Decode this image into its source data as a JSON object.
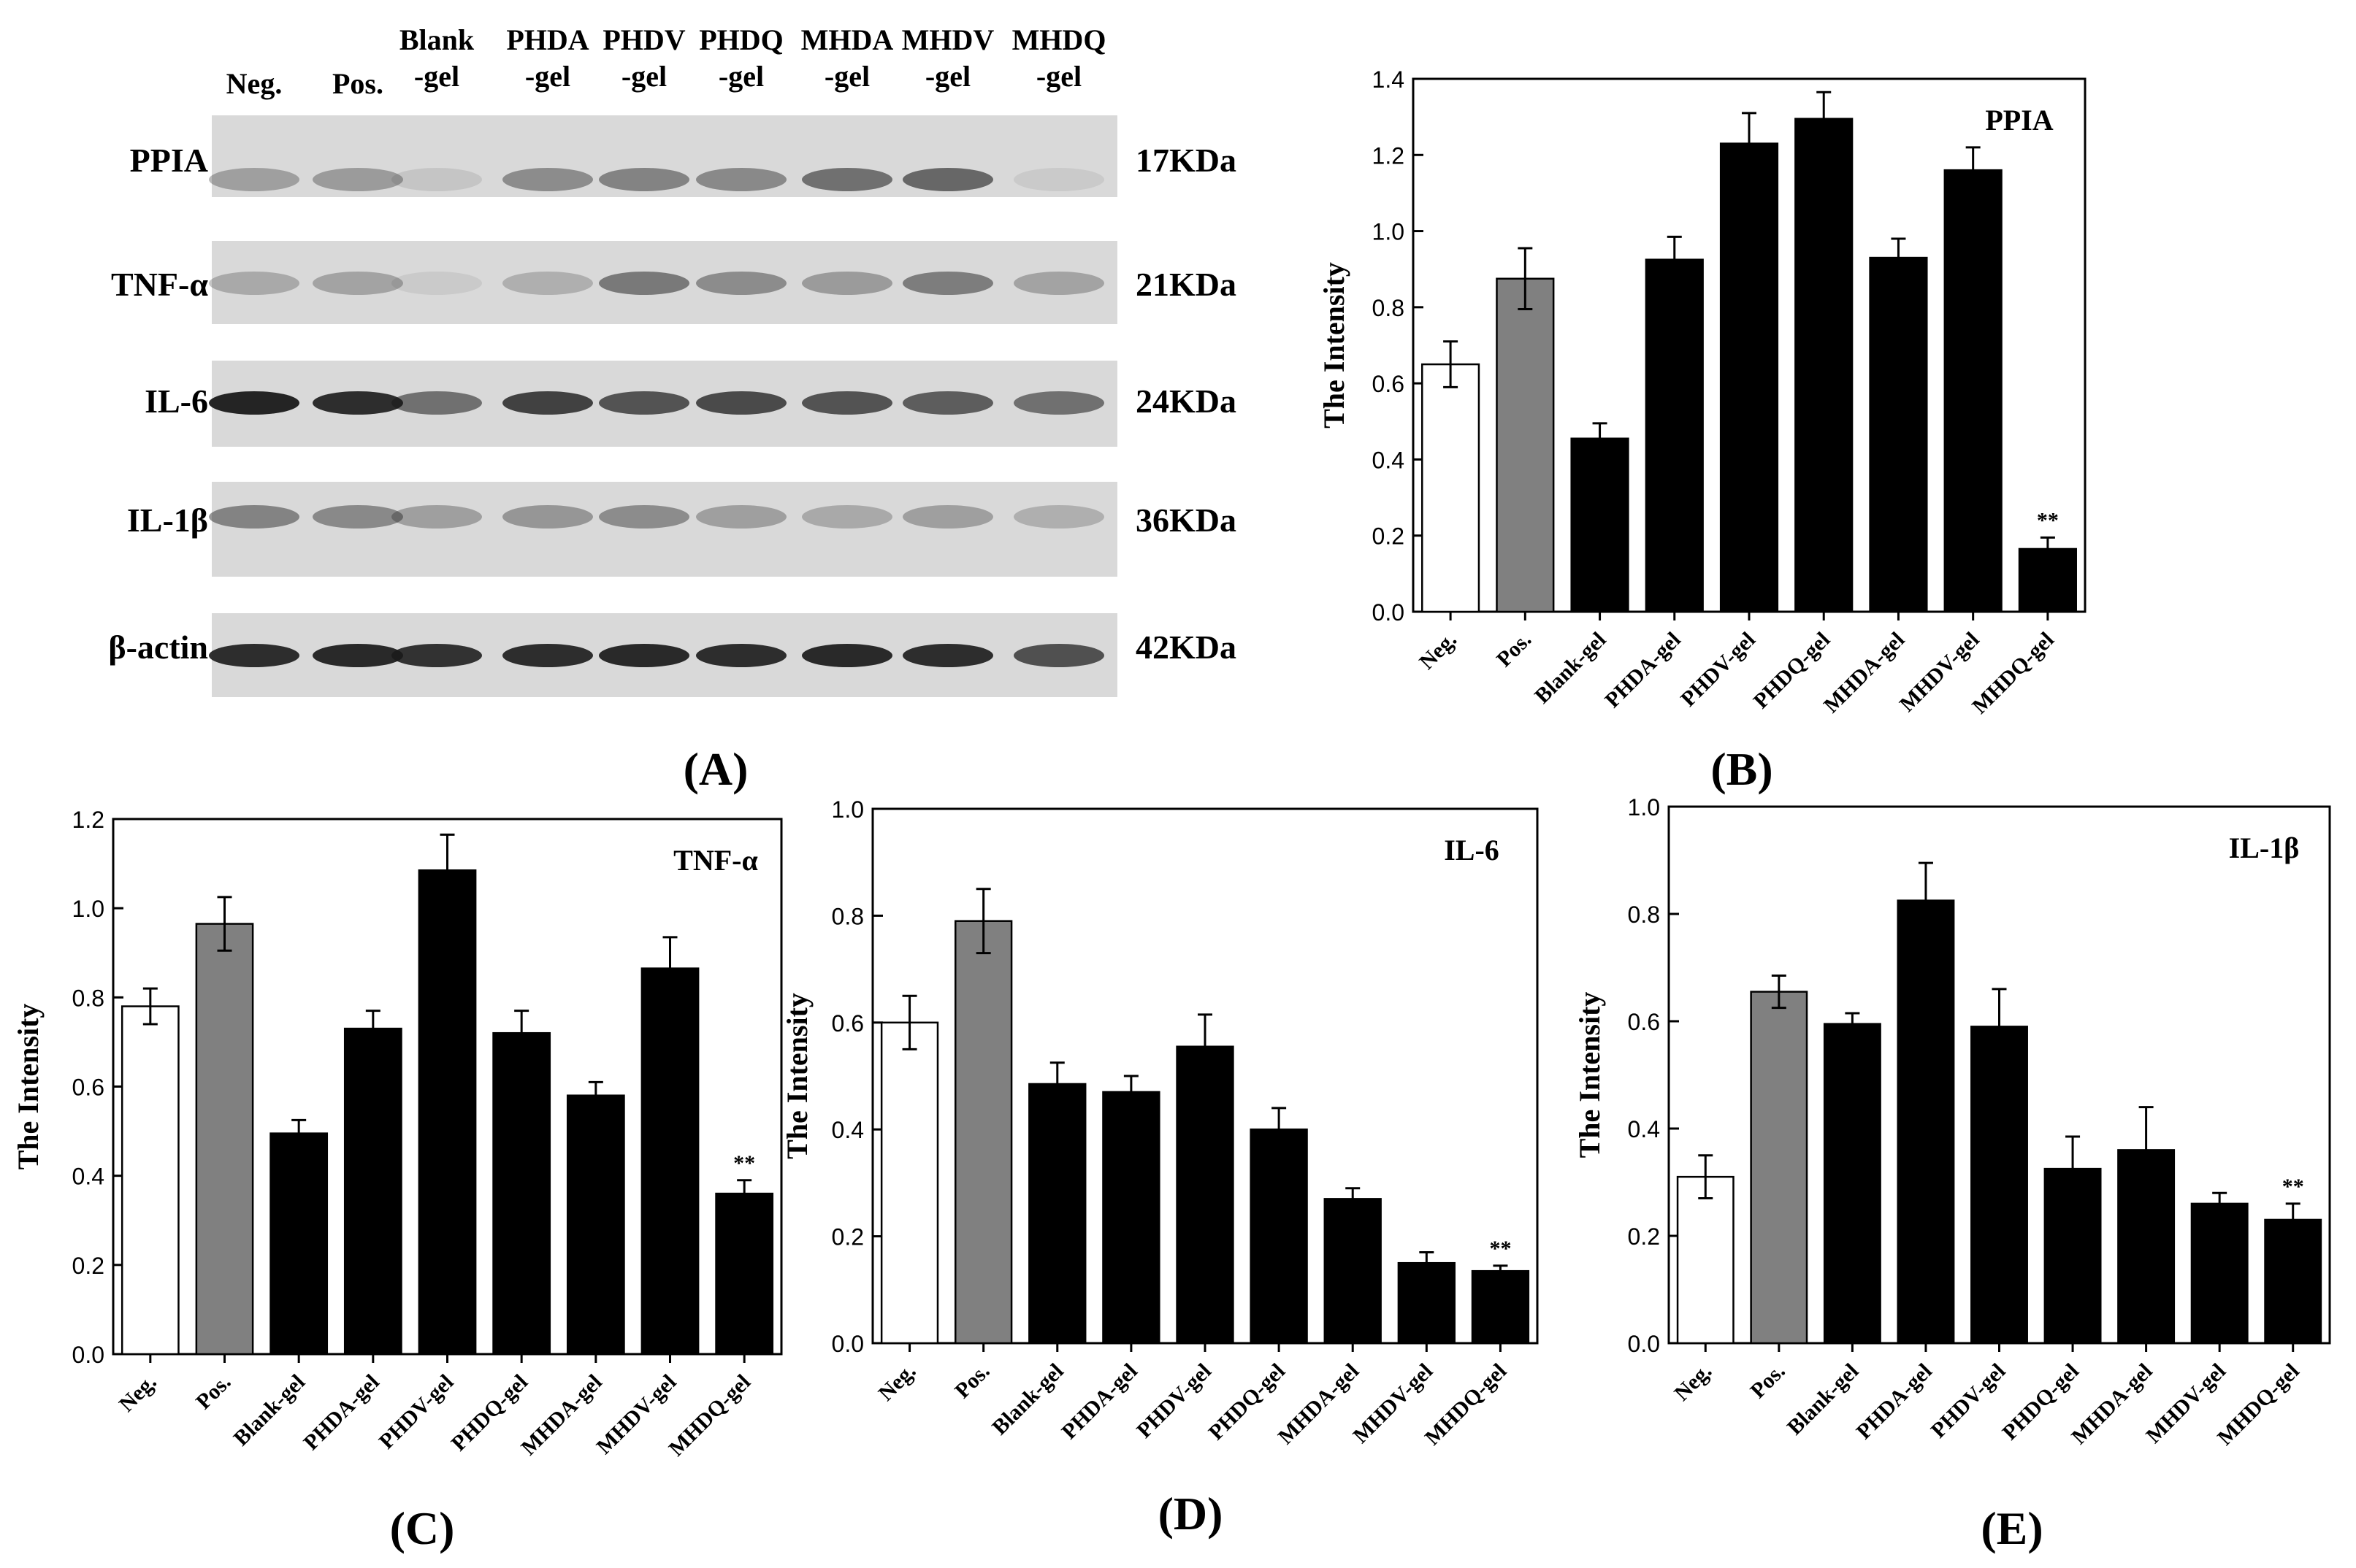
{
  "figure": {
    "panel_labels": {
      "A": "(A)",
      "B": "(B)",
      "C": "(C)",
      "D": "(D)",
      "E": "(E)"
    }
  },
  "blot": {
    "lanes": [
      [
        "Neg."
      ],
      [
        "Pos."
      ],
      [
        "Blank",
        "-gel"
      ],
      [
        "PHDA",
        "-gel"
      ],
      [
        "PHDV",
        "-gel"
      ],
      [
        "PHDQ",
        "-gel"
      ],
      [
        "MHDA",
        "-gel"
      ],
      [
        "MHDV",
        "-gel"
      ],
      [
        "MHDQ",
        "-gel"
      ]
    ],
    "rows": [
      {
        "protein": "PPIA",
        "size": "17KDa"
      },
      {
        "protein": "TNF-α",
        "size": "21KDa"
      },
      {
        "protein": "IL-6",
        "size": "24KDa"
      },
      {
        "protein": "IL-1β",
        "size": "36KDa"
      },
      {
        "protein": "β-actin",
        "size": "42KDa"
      }
    ],
    "band_intensity": [
      [
        0.3,
        0.32,
        0.1,
        0.4,
        0.45,
        0.42,
        0.55,
        0.6,
        0.08
      ],
      [
        0.25,
        0.28,
        0.08,
        0.22,
        0.5,
        0.4,
        0.32,
        0.48,
        0.28
      ],
      [
        0.95,
        0.9,
        0.55,
        0.8,
        0.7,
        0.75,
        0.7,
        0.65,
        0.55
      ],
      [
        0.45,
        0.42,
        0.3,
        0.35,
        0.4,
        0.3,
        0.25,
        0.3,
        0.22
      ],
      [
        0.9,
        0.92,
        0.88,
        0.9,
        0.92,
        0.9,
        0.92,
        0.9,
        0.72
      ]
    ]
  },
  "chart_data": [
    {
      "type": "bar",
      "id": "B",
      "title": "PPIA",
      "categories": [
        "Neg.",
        "Pos.",
        "Blank-gel",
        "PHDA-gel",
        "PHDV-gel",
        "PHDQ-gel",
        "MHDA-gel",
        "MHDV-gel",
        "MHDQ-gel"
      ],
      "values": [
        0.65,
        0.875,
        0.455,
        0.925,
        1.23,
        1.295,
        0.93,
        1.16,
        0.165
      ],
      "errors": [
        0.06,
        0.08,
        0.04,
        0.06,
        0.08,
        0.07,
        0.05,
        0.06,
        0.03
      ],
      "ylabel": "The Intensity",
      "xlabel": "",
      "ylim": [
        0,
        1.4
      ],
      "yticks": [
        "0.0",
        "0.2",
        "0.4",
        "0.6",
        "0.8",
        "1.0",
        "1.2",
        "1.4"
      ],
      "significance": "**"
    },
    {
      "type": "bar",
      "id": "C",
      "title": "TNF-α",
      "categories": [
        "Neg.",
        "Pos.",
        "Blank-gel",
        "PHDA-gel",
        "PHDV-gel",
        "PHDQ-gel",
        "MHDA-gel",
        "MHDV-gel",
        "MHDQ-gel"
      ],
      "values": [
        0.78,
        0.965,
        0.495,
        0.73,
        1.085,
        0.72,
        0.58,
        0.865,
        0.36
      ],
      "errors": [
        0.04,
        0.06,
        0.03,
        0.04,
        0.08,
        0.05,
        0.03,
        0.07,
        0.03
      ],
      "ylabel": "The Intensity",
      "xlabel": "",
      "ylim": [
        0,
        1.2
      ],
      "yticks": [
        "0.0",
        "0.2",
        "0.4",
        "0.6",
        "0.8",
        "1.0",
        "1.2"
      ],
      "significance": "**"
    },
    {
      "type": "bar",
      "id": "D",
      "title": "IL-6",
      "categories": [
        "Neg.",
        "Pos.",
        "Blank-gel",
        "PHDA-gel",
        "PHDV-gel",
        "PHDQ-gel",
        "MHDA-gel",
        "MHDV-gel",
        "MHDQ-gel"
      ],
      "values": [
        0.6,
        0.79,
        0.485,
        0.47,
        0.555,
        0.4,
        0.27,
        0.15,
        0.135
      ],
      "errors": [
        0.05,
        0.06,
        0.04,
        0.03,
        0.06,
        0.04,
        0.02,
        0.02,
        0.01
      ],
      "ylabel": "The Intensity",
      "xlabel": "",
      "ylim": [
        0,
        1.0
      ],
      "yticks": [
        "0.0",
        "0.2",
        "0.4",
        "0.6",
        "0.8",
        "1.0"
      ],
      "significance": "**"
    },
    {
      "type": "bar",
      "id": "E",
      "title": "IL-1β",
      "categories": [
        "Neg.",
        "Pos.",
        "Blank-gel",
        "PHDA-gel",
        "PHDV-gel",
        "PHDQ-gel",
        "MHDA-gel",
        "MHDV-gel",
        "MHDQ-gel"
      ],
      "values": [
        0.31,
        0.655,
        0.595,
        0.825,
        0.59,
        0.325,
        0.36,
        0.26,
        0.23
      ],
      "errors": [
        0.04,
        0.03,
        0.02,
        0.07,
        0.07,
        0.06,
        0.08,
        0.02,
        0.03
      ],
      "ylabel": "The Intensity",
      "xlabel": "",
      "ylim": [
        0,
        1.0
      ],
      "yticks": [
        "0.0",
        "0.2",
        "0.4",
        "0.6",
        "0.8",
        "1.0"
      ],
      "significance": "**"
    }
  ],
  "colors": {
    "neg_fill": "#ffffff",
    "pos_fill": "#808080",
    "treated_fill": "#000000",
    "axis": "#000000",
    "blot_bg": "#d9d9d9",
    "band": "#1a1a1a"
  }
}
